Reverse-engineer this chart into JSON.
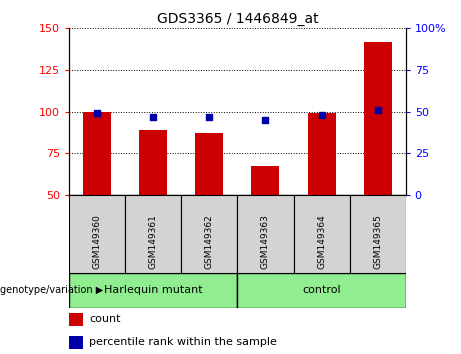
{
  "title": "GDS3365 / 1446849_at",
  "samples": [
    "GSM149360",
    "GSM149361",
    "GSM149362",
    "GSM149363",
    "GSM149364",
    "GSM149365"
  ],
  "counts": [
    100,
    89,
    87,
    67,
    99,
    142
  ],
  "percentile_ranks": [
    49,
    47,
    47,
    45,
    48,
    51
  ],
  "group0_label": "Harlequin mutant",
  "group0_indices": [
    0,
    1,
    2
  ],
  "group1_label": "control",
  "group1_indices": [
    3,
    4,
    5
  ],
  "group_color": "#90EE90",
  "sample_box_color": "#D3D3D3",
  "ylim_left": [
    50,
    150
  ],
  "ylim_right": [
    0,
    100
  ],
  "yticks_left": [
    50,
    75,
    100,
    125,
    150
  ],
  "yticks_right": [
    0,
    25,
    50,
    75,
    100
  ],
  "bar_color": "#CC0000",
  "dot_color": "#0000AA",
  "plot_bg": "#FFFFFF",
  "genotype_label": "genotype/variation",
  "legend_count": "count",
  "legend_percentile": "percentile rank within the sample",
  "bar_width": 0.5,
  "figsize": [
    4.61,
    3.54
  ],
  "dpi": 100
}
